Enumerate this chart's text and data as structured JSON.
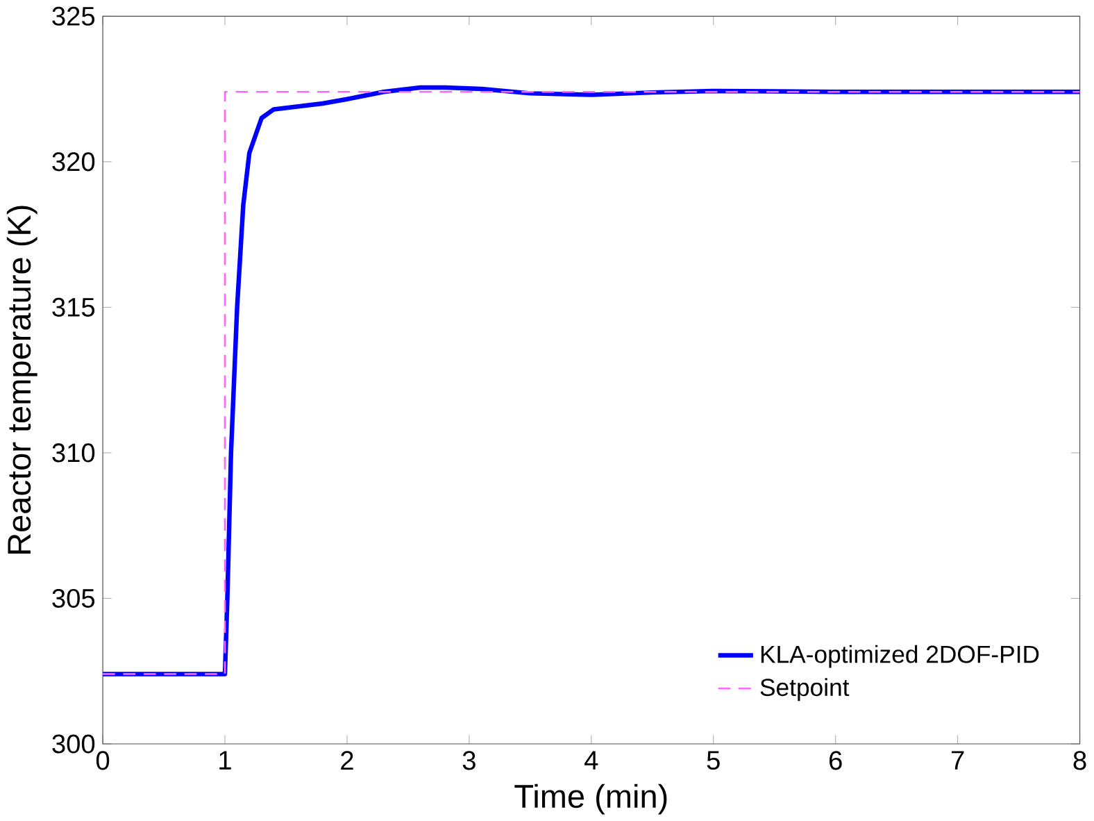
{
  "chart_data": {
    "type": "line",
    "xlabel": "Time (min)",
    "ylabel": "Reactor temperature (K)",
    "xlim": [
      0,
      8
    ],
    "ylim": [
      300,
      325
    ],
    "xticks": [
      0,
      1,
      2,
      3,
      4,
      5,
      6,
      7,
      8
    ],
    "yticks": [
      300,
      305,
      310,
      315,
      320,
      325
    ],
    "grid": false,
    "legend": "bottom right",
    "series": [
      {
        "name": "KLA-optimized 2DOF-PID",
        "color": "#0000ff",
        "line_style": "solid",
        "x": [
          0,
          1.0,
          1.02,
          1.05,
          1.1,
          1.15,
          1.2,
          1.3,
          1.4,
          1.6,
          1.8,
          2.0,
          2.3,
          2.6,
          2.8,
          3.1,
          3.5,
          4.0,
          4.5,
          5.0,
          5.5,
          6.0,
          8.0
        ],
        "values": [
          302.4,
          302.4,
          305,
          310,
          315,
          318.5,
          320.3,
          321.5,
          321.8,
          321.9,
          322.0,
          322.15,
          322.4,
          322.55,
          322.55,
          322.5,
          322.35,
          322.3,
          322.38,
          322.43,
          322.42,
          322.4,
          322.4
        ]
      },
      {
        "name": "Setpoint",
        "color": "#ff66ff",
        "line_style": "dashed",
        "x": [
          0,
          1.0,
          1.0,
          8.0
        ],
        "values": [
          302.4,
          302.4,
          322.4,
          322.4
        ]
      }
    ]
  }
}
